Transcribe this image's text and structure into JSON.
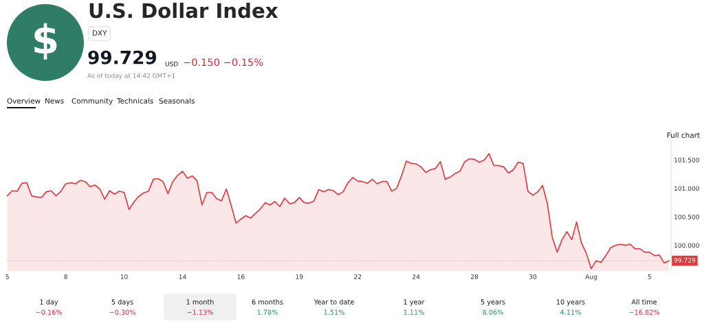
{
  "chart_data": {
    "type": "area",
    "title": "U.S. Dollar Index",
    "subtitle": "DXY",
    "annotations": [
      "$",
      "99.729",
      "USD",
      "−0.150 −0.15%",
      "As of today at 14:42 GMT+1",
      "Overview",
      "News",
      "Community",
      "Technicals",
      "Seasonals",
      "Full chart",
      "1 day",
      "−0.16%",
      "5 days",
      "−0.30%",
      "1 month",
      "−1.13%",
      "6 months",
      "1.78%",
      "Year to date",
      "1.51%",
      "1 year",
      "1.11%",
      "5 years",
      "8.06%",
      "10 years",
      "4.11%",
      "All time",
      "−16.82%"
    ],
    "categories": [
      "5",
      null,
      null,
      null,
      null,
      null,
      null,
      null,
      null,
      null,
      null,
      null,
      "8",
      null,
      null,
      null,
      null,
      null,
      null,
      null,
      null,
      null,
      null,
      null,
      "10",
      null,
      null,
      null,
      null,
      null,
      null,
      null,
      null,
      null,
      null,
      null,
      "14",
      null,
      null,
      null,
      null,
      null,
      null,
      null,
      null,
      null,
      null,
      null,
      "16",
      null,
      null,
      null,
      null,
      null,
      null,
      null,
      null,
      null,
      null,
      null,
      "19",
      null,
      null,
      null,
      null,
      null,
      null,
      null,
      null,
      null,
      null,
      null,
      "22",
      null,
      null,
      null,
      null,
      null,
      null,
      null,
      null,
      null,
      null,
      null,
      "24",
      null,
      null,
      null,
      null,
      null,
      null,
      null,
      null,
      null,
      null,
      null,
      "28",
      null,
      null,
      null,
      null,
      null,
      null,
      null,
      null,
      null,
      null,
      null,
      "30",
      null,
      null,
      null,
      null,
      null,
      null,
      null,
      null,
      null,
      null,
      null,
      "Aug",
      null,
      null,
      null,
      null,
      null,
      null,
      null,
      null,
      null,
      null,
      null,
      "5",
      null,
      null,
      null,
      null
    ],
    "series": [
      {
        "color": "#e03a3e",
        "values": [
          100.87,
          100.96,
          100.95,
          101.09,
          101.1,
          100.87,
          100.85,
          100.84,
          100.94,
          100.96,
          100.87,
          100.95,
          101.08,
          101.1,
          101.08,
          101.14,
          101.12,
          101.03,
          101.06,
          100.99,
          100.81,
          100.96,
          100.9,
          100.95,
          100.93,
          100.63,
          100.76,
          100.86,
          100.92,
          100.95,
          101.16,
          101.17,
          101.12,
          100.91,
          101.12,
          101.23,
          101.3,
          101.18,
          101.22,
          101.13,
          100.71,
          100.93,
          100.93,
          100.82,
          100.78,
          100.99,
          100.7,
          100.39,
          100.46,
          100.52,
          100.48,
          100.56,
          100.64,
          100.75,
          100.71,
          100.77,
          100.68,
          100.83,
          100.73,
          100.75,
          100.84,
          100.75,
          100.74,
          100.78,
          100.98,
          100.94,
          100.98,
          100.96,
          100.89,
          100.94,
          101.1,
          101.19,
          101.13,
          101.12,
          101.09,
          101.16,
          101.08,
          101.12,
          101.12,
          100.95,
          101.0,
          101.22,
          101.48,
          101.44,
          101.43,
          101.38,
          101.28,
          101.33,
          101.35,
          101.47,
          101.16,
          101.2,
          101.26,
          101.3,
          101.47,
          101.52,
          101.51,
          101.46,
          101.5,
          101.61,
          101.4,
          101.4,
          101.38,
          101.27,
          101.33,
          101.46,
          101.44,
          100.95,
          100.88,
          100.94,
          101.05,
          100.73,
          100.14,
          99.88,
          100.1,
          100.24,
          100.1,
          100.41,
          100.04,
          99.86,
          99.59,
          99.73,
          99.7,
          99.82,
          99.96,
          100.0,
          100.02,
          100.0,
          100.02,
          99.94,
          99.94,
          99.88,
          99.88,
          99.82,
          99.83,
          99.69,
          99.729
        ]
      }
    ],
    "ylim": [
      99.55,
      102.02
    ],
    "yticks": [
      {
        "value": 100,
        "label": "100.000"
      },
      {
        "value": 100.5,
        "label": "100.500"
      },
      {
        "value": 101,
        "label": "101.000"
      },
      {
        "value": 101.5,
        "label": "101.500"
      }
    ],
    "ref_lines": [
      {
        "axis": "y",
        "value": 99.729,
        "label": "99.729",
        "color": "#e03a3e"
      }
    ],
    "grid": false,
    "legend": false
  }
}
